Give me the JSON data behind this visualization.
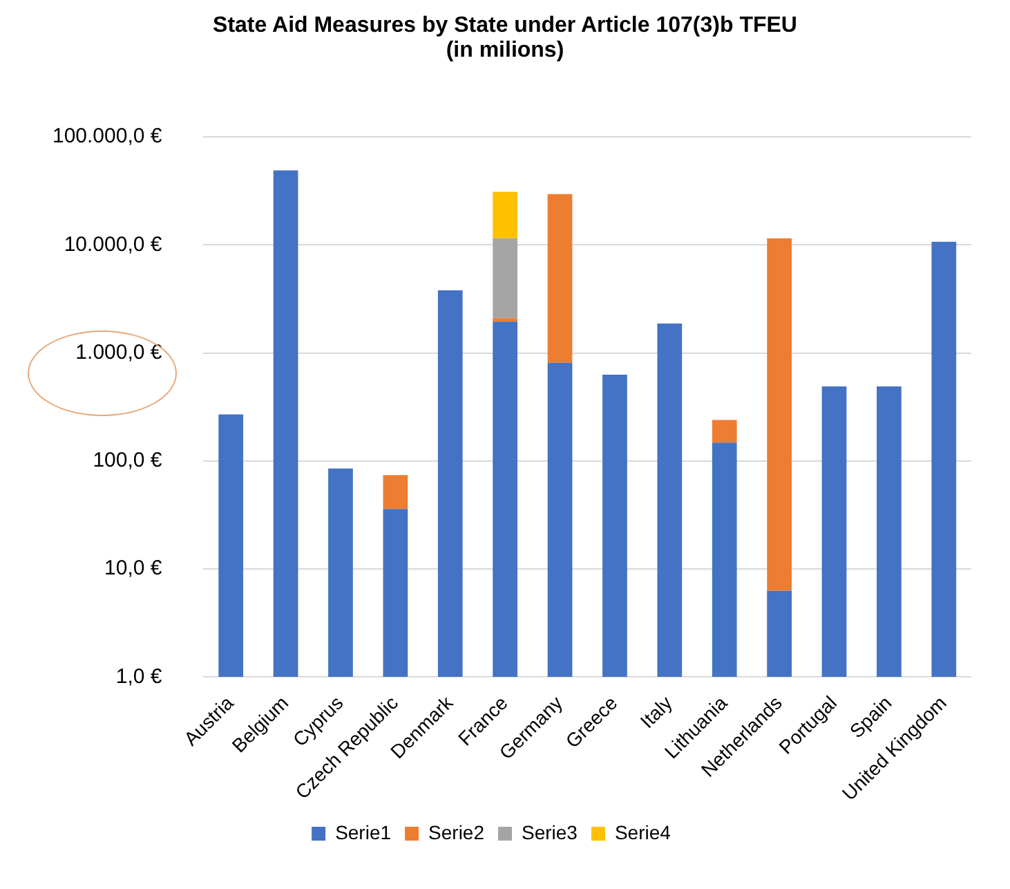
{
  "chart_data": {
    "type": "bar",
    "title": "State Aid Measures by State under Article 107(3)b TFEU (in milions)",
    "categories": [
      "Austria",
      "Belgium",
      "Cyprus",
      "Czech Republic",
      "Denmark",
      "France",
      "Germany",
      "Greece",
      "Italy",
      "Lithuania",
      "Netherlands",
      "Portugal",
      "Spain",
      "United Kingdom"
    ],
    "stacked": true,
    "log": "y",
    "ylim": [
      1,
      100000
    ],
    "yticks": [
      {
        "value": 1,
        "label": "1,0 €"
      },
      {
        "value": 10,
        "label": "10,0 €"
      },
      {
        "value": 100,
        "label": "100,0 €"
      },
      {
        "value": 1000,
        "label": "1.000,0 €"
      },
      {
        "value": 10000,
        "label": "10.000,0 €"
      },
      {
        "value": 100000,
        "label": "100.000,0 €"
      }
    ],
    "series": [
      {
        "name": "Serie1",
        "color": "#4472c4",
        "values": [
          270,
          49000,
          85,
          36,
          3800,
          1950,
          810,
          630,
          1870,
          148,
          6.3,
          490,
          490,
          10700
        ]
      },
      {
        "name": "Serie2",
        "color": "#ed7d31",
        "values": [
          null,
          null,
          null,
          38,
          null,
          150,
          28700,
          null,
          null,
          92,
          11500,
          null,
          null,
          null
        ]
      },
      {
        "name": "Serie3",
        "color": "#a5a5a5",
        "values": [
          null,
          null,
          null,
          null,
          null,
          9400,
          null,
          null,
          null,
          null,
          null,
          null,
          null,
          null
        ]
      },
      {
        "name": "Serie4",
        "color": "#ffc000",
        "values": [
          null,
          null,
          null,
          null,
          null,
          19500,
          null,
          null,
          null,
          null,
          null,
          null,
          null,
          null
        ]
      }
    ],
    "grid": "y",
    "legend": "bottom"
  }
}
